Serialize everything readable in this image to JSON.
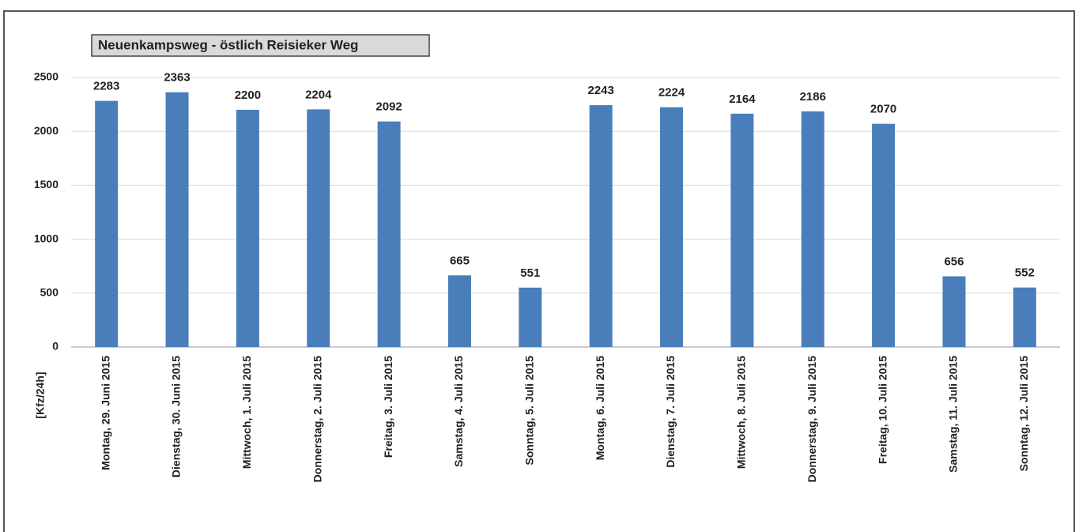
{
  "chart_data": {
    "type": "bar",
    "title": "Neuenkampsweg - östlich Reisieker Weg",
    "ylabel": "[Kfz/24h]",
    "categories": [
      "Montag, 29. Juni 2015",
      "Dienstag, 30. Juni 2015",
      "Mittwoch, 1. Juli 2015",
      "Donnerstag, 2. Juli 2015",
      "Freitag, 3. Juli 2015",
      "Samstag, 4. Juli 2015",
      "Sonntag, 5. Juli 2015",
      "Montag, 6. Juli 2015",
      "Dienstag, 7. Juli 2015",
      "Mittwoch, 8. Juli 2015",
      "Donnerstag, 9. Juli 2015",
      "Freitag, 10. Juli 2015",
      "Samstag, 11. Juli 2015",
      "Sonntag, 12. Juli 2015"
    ],
    "values": [
      2283,
      2363,
      2200,
      2204,
      2092,
      665,
      551,
      2243,
      2224,
      2164,
      2186,
      2070,
      656,
      552
    ],
    "color": "#4a7ebb",
    "ylim": [
      0,
      2500
    ],
    "yticks": [
      0,
      500,
      1000,
      1500,
      2000,
      2500
    ],
    "grid": true
  }
}
